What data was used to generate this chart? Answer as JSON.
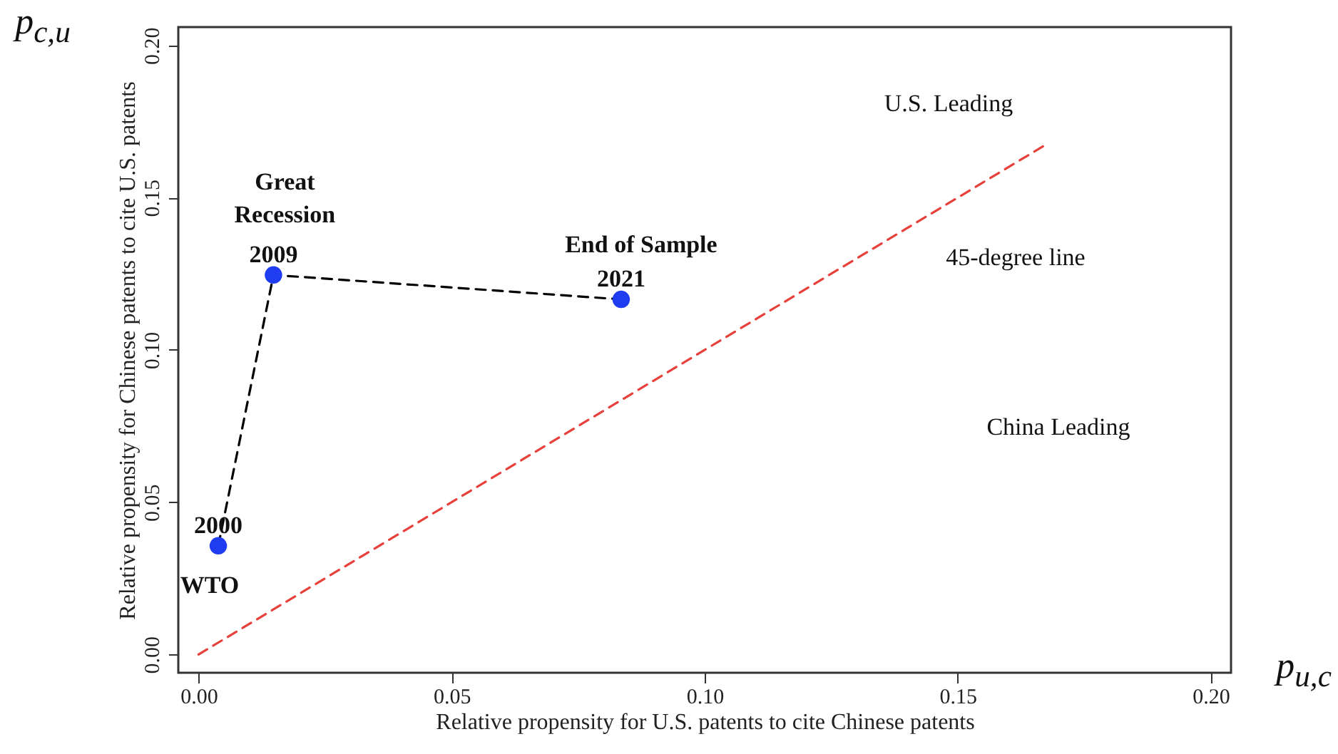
{
  "chart_data": {
    "type": "scatter",
    "xlabel": "Relative propensity for U.S. patents to cite Chinese patents",
    "ylabel": "Relative propensity for Chinese patents to cite U.S. patents",
    "xlim": [
      -0.004,
      0.204
    ],
    "ylim": [
      -0.006,
      0.206
    ],
    "xticks": [
      {
        "value": 0,
        "label": "0.00"
      },
      {
        "value": 0.05,
        "label": "0.05"
      },
      {
        "value": 0.1,
        "label": "0.10"
      },
      {
        "value": 0.15,
        "label": "0.15"
      },
      {
        "value": 0.2,
        "label": "0.20"
      }
    ],
    "yticks": [
      {
        "value": 0,
        "label": "0.00"
      },
      {
        "value": 0.05,
        "label": "0.05"
      },
      {
        "value": 0.1,
        "label": "0.10"
      },
      {
        "value": 0.15,
        "label": "0.15"
      },
      {
        "value": 0.2,
        "label": "0.20"
      }
    ],
    "series": [
      {
        "marker": "circle",
        "color": "#1f3cf0",
        "x": [
          0.0039,
          0.0148,
          0.0835
        ],
        "values": [
          0.0357,
          0.1246,
          0.1166
        ]
      },
      {
        "type": "line",
        "line_style": "dashed",
        "color": "#000000",
        "x": [
          0.0039,
          0.0148,
          0.0835
        ],
        "values": [
          0.0357,
          0.1246,
          0.1166
        ]
      },
      {
        "type": "line",
        "line_style": "dashed",
        "color": "#e8413c",
        "x": [
          0,
          0.167
        ],
        "values": [
          0,
          0.167
        ]
      }
    ],
    "annotations": [
      {
        "text": "2000",
        "x": 0.0039,
        "y": 0.0357
      },
      {
        "text": "2009",
        "x": 0.0148,
        "y": 0.1246
      },
      {
        "text": "2021",
        "x": 0.0835,
        "y": 0.1166
      },
      {
        "text": "WTO",
        "x": 0.0039,
        "y": 0.0357
      },
      {
        "text": "Great Recession",
        "x": 0.0148,
        "y": 0.1246
      },
      {
        "text": "End of Sample",
        "x": 0.0835,
        "y": 0.1166
      },
      "U.S. Leading",
      "45-degree line",
      "China Leading",
      "p$_{c,u}$",
      "p$_{u,c}$"
    ]
  }
}
